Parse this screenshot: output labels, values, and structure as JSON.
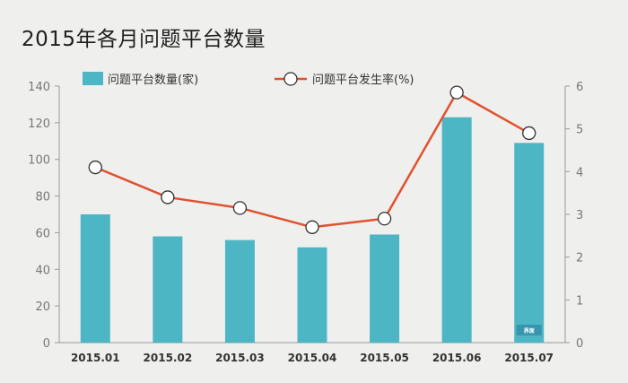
{
  "title": "2015年各月问题平台数量",
  "watermark": "界面",
  "chart_data": {
    "type": "bar+line",
    "categories": [
      "2015.01",
      "2015.02",
      "2015.03",
      "2015.04",
      "2015.05",
      "2015.06",
      "2015.07"
    ],
    "series": [
      {
        "name": "问题平台数量(家)",
        "type": "bar",
        "axis": "left",
        "values": [
          70,
          58,
          56,
          52,
          59,
          123,
          109
        ],
        "color": "#4db6c4"
      },
      {
        "name": "问题平台发生率(%)",
        "type": "line",
        "axis": "right",
        "values": [
          4.1,
          3.4,
          3.15,
          2.7,
          2.9,
          5.85,
          4.9
        ],
        "color": "#e0522f"
      }
    ],
    "yleft": {
      "ylim": [
        0,
        140
      ],
      "ticks": [
        "0",
        "20",
        "40",
        "60",
        "80",
        "100",
        "120",
        "140"
      ]
    },
    "yright": {
      "ylim": [
        0,
        6
      ],
      "ticks": [
        "0",
        "1",
        "2",
        "3",
        "4",
        "5",
        "6"
      ]
    },
    "legend_placement": "top",
    "grid": false
  }
}
